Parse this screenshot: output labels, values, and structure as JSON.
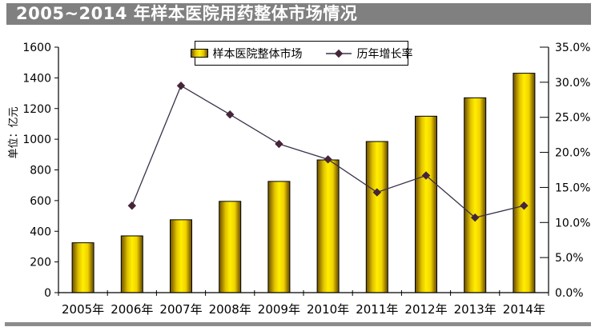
{
  "title": "2005~2014 年样本医院用药整体市场情况",
  "colors": {
    "title_bar_bg": "#808080",
    "title_text": "#ffffff",
    "bar_center": "#ffee00",
    "bar_mid": "#e3c400",
    "bar_edge": "#6b5300",
    "bar_border": "#000000",
    "line": "#3a3148",
    "marker": "#45253a",
    "axis": "#000000",
    "text": "#000000",
    "bottom_rule": "#8c8c8c",
    "plot_bg": "#ffffff"
  },
  "chart_data": {
    "type": "bar",
    "combo": "bar+line",
    "title": "2005~2014 年样本医院用药整体市场情况",
    "categories": [
      "2005年",
      "2006年",
      "2007年",
      "2008年",
      "2009年",
      "2010年",
      "2011年",
      "2012年",
      "2013年",
      "2014年"
    ],
    "series": [
      {
        "name": "样本医院整体市场",
        "type": "bar",
        "axis": "left",
        "values": [
          325,
          370,
          475,
          595,
          725,
          865,
          985,
          1150,
          1270,
          1430
        ]
      },
      {
        "name": "历年增长率",
        "type": "line",
        "axis": "right",
        "values": [
          null,
          12.4,
          29.5,
          25.4,
          21.2,
          19.0,
          14.3,
          16.7,
          10.7,
          12.4
        ]
      }
    ],
    "left_axis": {
      "label": "单位：亿元",
      "min": 0,
      "max": 1600,
      "step": 200,
      "ticks": [
        "0",
        "200",
        "400",
        "600",
        "800",
        "1000",
        "1200",
        "1400",
        "1600"
      ]
    },
    "right_axis": {
      "label": "",
      "min": 0,
      "max": 35,
      "step": 5,
      "ticks": [
        "0.0%",
        "5.0%",
        "10.0%",
        "15.0%",
        "20.0%",
        "25.0%",
        "30.0%",
        "35.0%"
      ]
    },
    "legend": {
      "position": "top-center",
      "items": [
        "样本医院整体市场",
        "历年增长率"
      ]
    },
    "grid": false
  }
}
